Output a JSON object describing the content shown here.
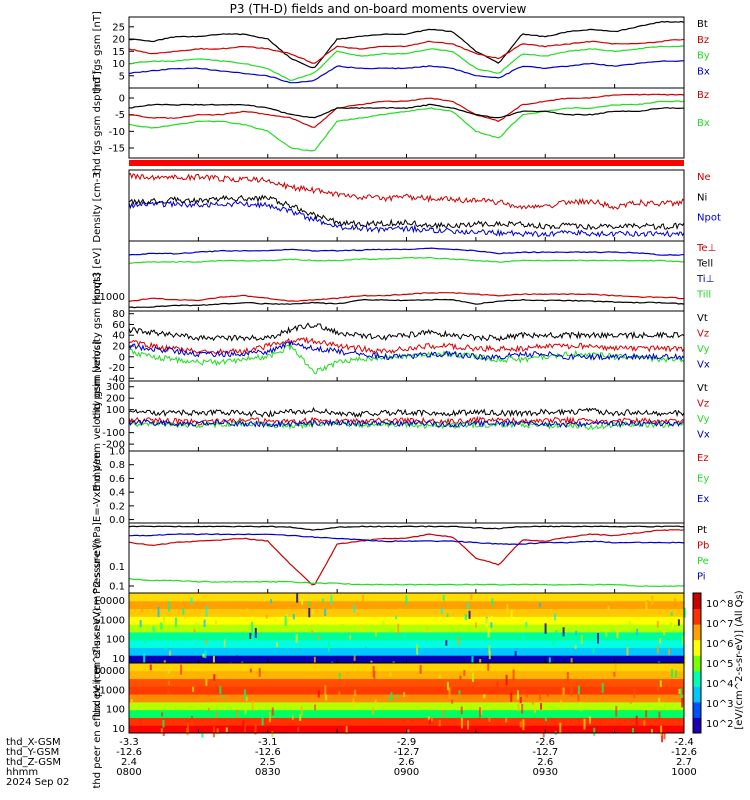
{
  "title": "P3 (TH-D) fields and on-board moments overview",
  "footer": {
    "row_labels": [
      "thd_X-GSM",
      "thd_Y-GSM",
      "thd_Z-GSM",
      "hhmm",
      "2024 Sep 02"
    ],
    "columns": [
      {
        "x": "-3.3",
        "y": "-12.6",
        "z": "2.4",
        "t": "0800"
      },
      {
        "x": "-3.1",
        "y": "-12.6",
        "z": "2.5",
        "t": "0830"
      },
      {
        "x": "-2.9",
        "y": "-12.7",
        "z": "2.6",
        "t": "0900"
      },
      {
        "x": "-2.6",
        "y": "-12.7",
        "z": "2.6",
        "t": "0930"
      },
      {
        "x": "-2.4",
        "y": "-12.6",
        "z": "2.7",
        "t": "1000"
      }
    ]
  },
  "colorbar": {
    "label": "[eV/(cm^2-s-sr-eV)] (All Qs)",
    "ticks": [
      "10^8",
      "10^7",
      "10^6",
      "10^5",
      "10^4",
      "10^3",
      "10^2"
    ],
    "colors": [
      "#1e00b4",
      "#0050ff",
      "#00c8ff",
      "#00ffb4",
      "#78ff00",
      "#ffff00",
      "#ffa000",
      "#ff3000",
      "#c80000"
    ]
  },
  "chart_data": [
    {
      "type": "line",
      "ylabel": "thd fgs gsm [nT]",
      "ylim": [
        0,
        29
      ],
      "yticks": [
        "25",
        "20",
        "15",
        "10",
        "5"
      ],
      "series": [
        {
          "name": "Bt",
          "color": "#000000",
          "values": [
            20,
            19,
            21,
            21,
            22,
            22,
            20,
            12,
            8,
            20,
            21,
            22,
            22,
            24,
            23,
            15,
            10,
            22,
            21,
            23,
            24,
            23,
            25,
            27,
            27
          ]
        },
        {
          "name": "Bz",
          "color": "#cc0000",
          "values": [
            16,
            14,
            15,
            16,
            16,
            17,
            16,
            14,
            10,
            17,
            16,
            17,
            17,
            19,
            18,
            14,
            12,
            18,
            17,
            18,
            19,
            18,
            18,
            19,
            20
          ]
        },
        {
          "name": "By",
          "color": "#22dd22",
          "values": [
            10,
            11,
            11,
            12,
            11,
            10,
            8,
            3,
            6,
            15,
            13,
            14,
            14,
            16,
            15,
            8,
            6,
            14,
            13,
            15,
            16,
            15,
            16,
            17,
            17
          ]
        },
        {
          "name": "Bx",
          "color": "#0000cc",
          "values": [
            6,
            7,
            8,
            8,
            7,
            6,
            5,
            2,
            3,
            9,
            8,
            8,
            8,
            9,
            8,
            5,
            4,
            9,
            8,
            9,
            10,
            9,
            10,
            11,
            11
          ]
        }
      ]
    },
    {
      "type": "line",
      "ylabel": "thd fgs gsm dsp [nT]",
      "ylim": [
        -18,
        3
      ],
      "yticks": [
        "0",
        "-5",
        "-10",
        "-15"
      ],
      "series": [
        {
          "name": "Bz",
          "color": "#cc0000",
          "values": [
            -5,
            -6,
            -6,
            -5,
            -5,
            -4,
            -5,
            -6,
            -9,
            -3,
            -2,
            -1,
            -1,
            0,
            -1,
            -5,
            -7,
            -2,
            -1,
            0,
            0,
            1,
            1,
            1,
            1
          ]
        },
        {
          "name": "Bx",
          "color": "#22dd22",
          "values": [
            -8,
            -9,
            -8,
            -7,
            -7,
            -8,
            -10,
            -15,
            -16,
            -7,
            -6,
            -5,
            -4,
            -3,
            -4,
            -10,
            -12,
            -5,
            -4,
            -3,
            -3,
            -2,
            -2,
            -1,
            -1
          ]
        },
        {
          "name": "",
          "color": "#000000",
          "values": [
            -3,
            -2,
            -2,
            -2,
            -2,
            -2,
            -3,
            -5,
            -6,
            -3,
            -3,
            -3,
            -3,
            -2,
            -3,
            -5,
            -6,
            -4,
            -4,
            -5,
            -5,
            -4,
            -4,
            -3,
            -3
          ]
        }
      ]
    },
    {
      "type": "line",
      "ylabel": "Density [cm-3]",
      "ylim": [
        0,
        1
      ],
      "yticks": [],
      "series": [
        {
          "name": "Ne",
          "color": "#cc0000",
          "values": [
            0.92,
            0.9,
            0.89,
            0.9,
            0.88,
            0.87,
            0.85,
            0.76,
            0.71,
            0.66,
            0.62,
            0.6,
            0.62,
            0.6,
            0.58,
            0.57,
            0.55,
            0.47,
            0.47,
            0.55,
            0.56,
            0.48,
            0.54,
            0.52,
            0.55
          ]
        },
        {
          "name": "Ni",
          "color": "#000000",
          "values": [
            0.55,
            0.56,
            0.58,
            0.56,
            0.6,
            0.6,
            0.6,
            0.5,
            0.36,
            0.26,
            0.24,
            0.25,
            0.26,
            0.22,
            0.22,
            0.24,
            0.24,
            0.24,
            0.2,
            0.22,
            0.2,
            0.2,
            0.22,
            0.2,
            0.22
          ]
        },
        {
          "name": "Npot",
          "color": "#0000cc",
          "values": [
            0.5,
            0.52,
            0.52,
            0.51,
            0.52,
            0.52,
            0.5,
            0.42,
            0.3,
            0.2,
            0.18,
            0.16,
            0.18,
            0.15,
            0.14,
            0.12,
            0.12,
            0.1,
            0.1,
            0.12,
            0.1,
            0.1,
            0.1,
            0.1,
            0.1
          ]
        }
      ]
    },
    {
      "type": "line",
      "ylabel": "moqt3 [eV]",
      "ylim": [
        0,
        1
      ],
      "yticks": [
        "1000"
      ],
      "series": [
        {
          "name": "Te⊥",
          "color": "#cc0000",
          "values": [
            0.14,
            0.18,
            0.16,
            0.15,
            0.2,
            0.22,
            0.18,
            0.14,
            0.16,
            0.18,
            0.22,
            0.22,
            0.24,
            0.26,
            0.26,
            0.24,
            0.22,
            0.24,
            0.24,
            0.24,
            0.24,
            0.22,
            0.2,
            0.2,
            0.18
          ]
        },
        {
          "name": "Tell",
          "color": "#000000",
          "values": [
            0.05,
            0.06,
            0.08,
            0.08,
            0.1,
            0.12,
            0.1,
            0.1,
            0.12,
            0.1,
            0.16,
            0.16,
            0.15,
            0.16,
            0.16,
            0.1,
            0.14,
            0.16,
            0.15,
            0.15,
            0.14,
            0.13,
            0.12,
            0.12,
            0.1
          ]
        },
        {
          "name": "Ti⊥",
          "color": "#0000cc",
          "values": [
            0.8,
            0.82,
            0.82,
            0.84,
            0.86,
            0.86,
            0.86,
            0.88,
            0.86,
            0.86,
            0.87,
            0.88,
            0.88,
            0.9,
            0.88,
            0.86,
            0.82,
            0.84,
            0.84,
            0.84,
            0.84,
            0.84,
            0.83,
            0.8,
            0.8
          ]
        },
        {
          "name": "Till",
          "color": "#22dd22",
          "values": [
            0.68,
            0.7,
            0.7,
            0.7,
            0.72,
            0.72,
            0.72,
            0.74,
            0.72,
            0.72,
            0.74,
            0.74,
            0.76,
            0.76,
            0.74,
            0.72,
            0.7,
            0.72,
            0.72,
            0.72,
            0.72,
            0.72,
            0.72,
            0.72,
            0.7
          ]
        }
      ]
    },
    {
      "type": "line",
      "ylabel": "thd peim velocity gsm [km/s]",
      "ylim": [
        -45,
        85
      ],
      "yticks": [
        "80",
        "60",
        "40",
        "20",
        "0",
        "-20",
        "-40"
      ],
      "series": [
        {
          "name": "Vt",
          "color": "#000000",
          "values": [
            50,
            45,
            40,
            35,
            35,
            35,
            35,
            50,
            60,
            45,
            40,
            35,
            40,
            45,
            40,
            35,
            35,
            40,
            40,
            40,
            40,
            40,
            40,
            40,
            40
          ]
        },
        {
          "name": "Vz",
          "color": "#dd0000",
          "values": [
            30,
            20,
            15,
            10,
            10,
            10,
            20,
            30,
            30,
            20,
            15,
            10,
            15,
            20,
            20,
            15,
            15,
            15,
            20,
            20,
            20,
            15,
            15,
            15,
            15
          ]
        },
        {
          "name": "Vy",
          "color": "#22dd22",
          "values": [
            10,
            0,
            -5,
            -10,
            -10,
            -5,
            0,
            20,
            -30,
            -10,
            -5,
            0,
            0,
            5,
            5,
            0,
            -5,
            -5,
            0,
            5,
            5,
            0,
            0,
            -5,
            -5
          ]
        },
        {
          "name": "Vx",
          "color": "#0000cc",
          "values": [
            20,
            15,
            10,
            5,
            5,
            5,
            10,
            25,
            15,
            10,
            5,
            0,
            0,
            5,
            5,
            0,
            0,
            5,
            5,
            0,
            0,
            0,
            0,
            0,
            0
          ]
        }
      ]
    },
    {
      "type": "line",
      "ylabel": "thd peem velocity gsm [km/s]",
      "ylim": [
        -260,
        350
      ],
      "yticks": [
        "300",
        "200",
        "100",
        "0",
        "-100",
        "-200"
      ],
      "series": [
        {
          "name": "Vt",
          "color": "#000000",
          "values": [
            80,
            70,
            75,
            70,
            80,
            70,
            60,
            80,
            90,
            70,
            60,
            70,
            80,
            70,
            70,
            80,
            70,
            70,
            80,
            80,
            90,
            70,
            80,
            70,
            70
          ]
        },
        {
          "name": "Vz",
          "color": "#dd0000",
          "values": [
            10,
            5,
            0,
            -10,
            0,
            10,
            0,
            -10,
            10,
            0,
            0,
            10,
            5,
            0,
            0,
            10,
            5,
            0,
            10,
            5,
            0,
            0,
            5,
            0,
            0
          ]
        },
        {
          "name": "Vy",
          "color": "#22dd22",
          "values": [
            -20,
            -30,
            -40,
            -30,
            -30,
            -20,
            -30,
            -40,
            -30,
            -20,
            -30,
            -30,
            -30,
            -40,
            -40,
            -30,
            -30,
            -30,
            -40,
            -40,
            -50,
            -30,
            -30,
            -30,
            -30
          ]
        },
        {
          "name": "Vx",
          "color": "#0000cc",
          "values": [
            -10,
            -10,
            -20,
            -20,
            -10,
            -20,
            -30,
            -20,
            -20,
            -10,
            -20,
            -20,
            -20,
            -20,
            -30,
            -20,
            -20,
            -20,
            -20,
            -30,
            -20,
            -20,
            -20,
            -20,
            -20
          ]
        }
      ]
    },
    {
      "type": "line",
      "ylabel": "E=-VxB mV/m",
      "ylim": [
        -0.05,
        1.0
      ],
      "yticks": [
        "1.0",
        "0.8",
        "0.6",
        "0.4",
        "0.2",
        "0.0"
      ],
      "series": [
        {
          "name": "Ez",
          "color": "#dd0000",
          "values": []
        },
        {
          "name": "Ey",
          "color": "#22dd22",
          "values": []
        },
        {
          "name": "Ex",
          "color": "#0000cc",
          "values": []
        }
      ]
    },
    {
      "type": "line",
      "ylabel": "Pressure [nPa]",
      "ylim": [
        0,
        1
      ],
      "yticks": [
        "0.1"
      ],
      "series": [
        {
          "name": "Pt",
          "color": "#000000",
          "values": [
            0.95,
            0.95,
            0.95,
            0.95,
            0.95,
            0.95,
            0.95,
            0.94,
            0.9,
            0.94,
            0.95,
            0.95,
            0.95,
            0.95,
            0.95,
            0.93,
            0.92,
            0.95,
            0.95,
            0.95,
            0.95,
            0.95,
            0.95,
            0.95,
            0.95
          ]
        },
        {
          "name": "Pb",
          "color": "#cc0000",
          "values": [
            0.72,
            0.68,
            0.72,
            0.74,
            0.76,
            0.78,
            0.74,
            0.4,
            0.1,
            0.7,
            0.74,
            0.78,
            0.78,
            0.84,
            0.8,
            0.5,
            0.4,
            0.76,
            0.74,
            0.8,
            0.84,
            0.82,
            0.86,
            0.9,
            0.9
          ]
        },
        {
          "name": "Pe",
          "color": "#22dd22",
          "values": [
            0.2,
            0.18,
            0.18,
            0.16,
            0.16,
            0.16,
            0.16,
            0.16,
            0.14,
            0.14,
            0.12,
            0.12,
            0.12,
            0.12,
            0.12,
            0.12,
            0.12,
            0.12,
            0.12,
            0.12,
            0.12,
            0.12,
            0.1,
            0.1,
            0.1
          ]
        },
        {
          "name": "Pi",
          "color": "#0000cc",
          "values": [
            0.82,
            0.82,
            0.84,
            0.84,
            0.84,
            0.84,
            0.84,
            0.82,
            0.8,
            0.78,
            0.76,
            0.74,
            0.74,
            0.74,
            0.74,
            0.72,
            0.7,
            0.7,
            0.72,
            0.72,
            0.74,
            0.72,
            0.72,
            0.72,
            0.72
          ]
        }
      ]
    },
    {
      "type": "heatmap",
      "ylabel": "thd peir en eflux eV (cm^2-s-sr-eV)",
      "yticks": [
        "10000",
        "1000",
        "100",
        "10"
      ],
      "rows_low_to_high": [
        "#0000b4",
        "#00c8ff",
        "#00ffdc",
        "#00ff96",
        "#b4ff00",
        "#ffff00",
        "#ffc800",
        "#ffa000",
        "#ffdc00"
      ]
    },
    {
      "type": "heatmap",
      "ylabel": "thd peer en eflux eV (cm^2-s-sr-eV)",
      "yticks": [
        "10000",
        "1000",
        "100",
        "10"
      ],
      "rows_low_to_high": [
        "#ff0000",
        "#ff3200",
        "#00ff64",
        "#b4ff00",
        "#ff8c00",
        "#ff3c00",
        "#ff5000",
        "#ffb400",
        "#ffd200"
      ]
    }
  ]
}
